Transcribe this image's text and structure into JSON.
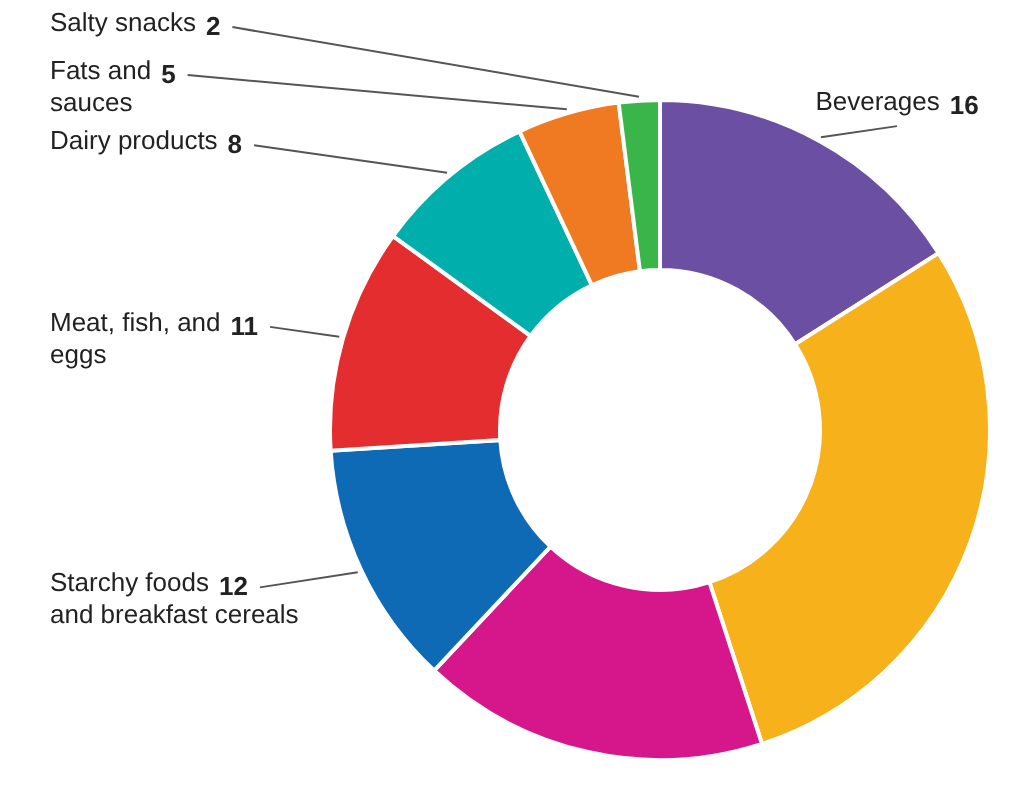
{
  "chart_data": {
    "type": "donut",
    "categories": [
      "Beverages",
      null,
      null,
      "Starchy foods and breakfast cereals",
      "Meat, fish, and eggs",
      "Dairy products",
      "Fats and sauces",
      "Salty snacks"
    ],
    "values": [
      16,
      29,
      17,
      12,
      11,
      8,
      5,
      2
    ],
    "value_labels": [
      "16",
      null,
      null,
      "12",
      "11",
      "8",
      "5",
      "2"
    ],
    "colors": [
      "#6a4fa3",
      "#f7b11b",
      "#d6168b",
      "#0e6ab4",
      "#e42d2e",
      "#00aeab",
      "#f07a22",
      "#39b54a"
    ]
  }
}
